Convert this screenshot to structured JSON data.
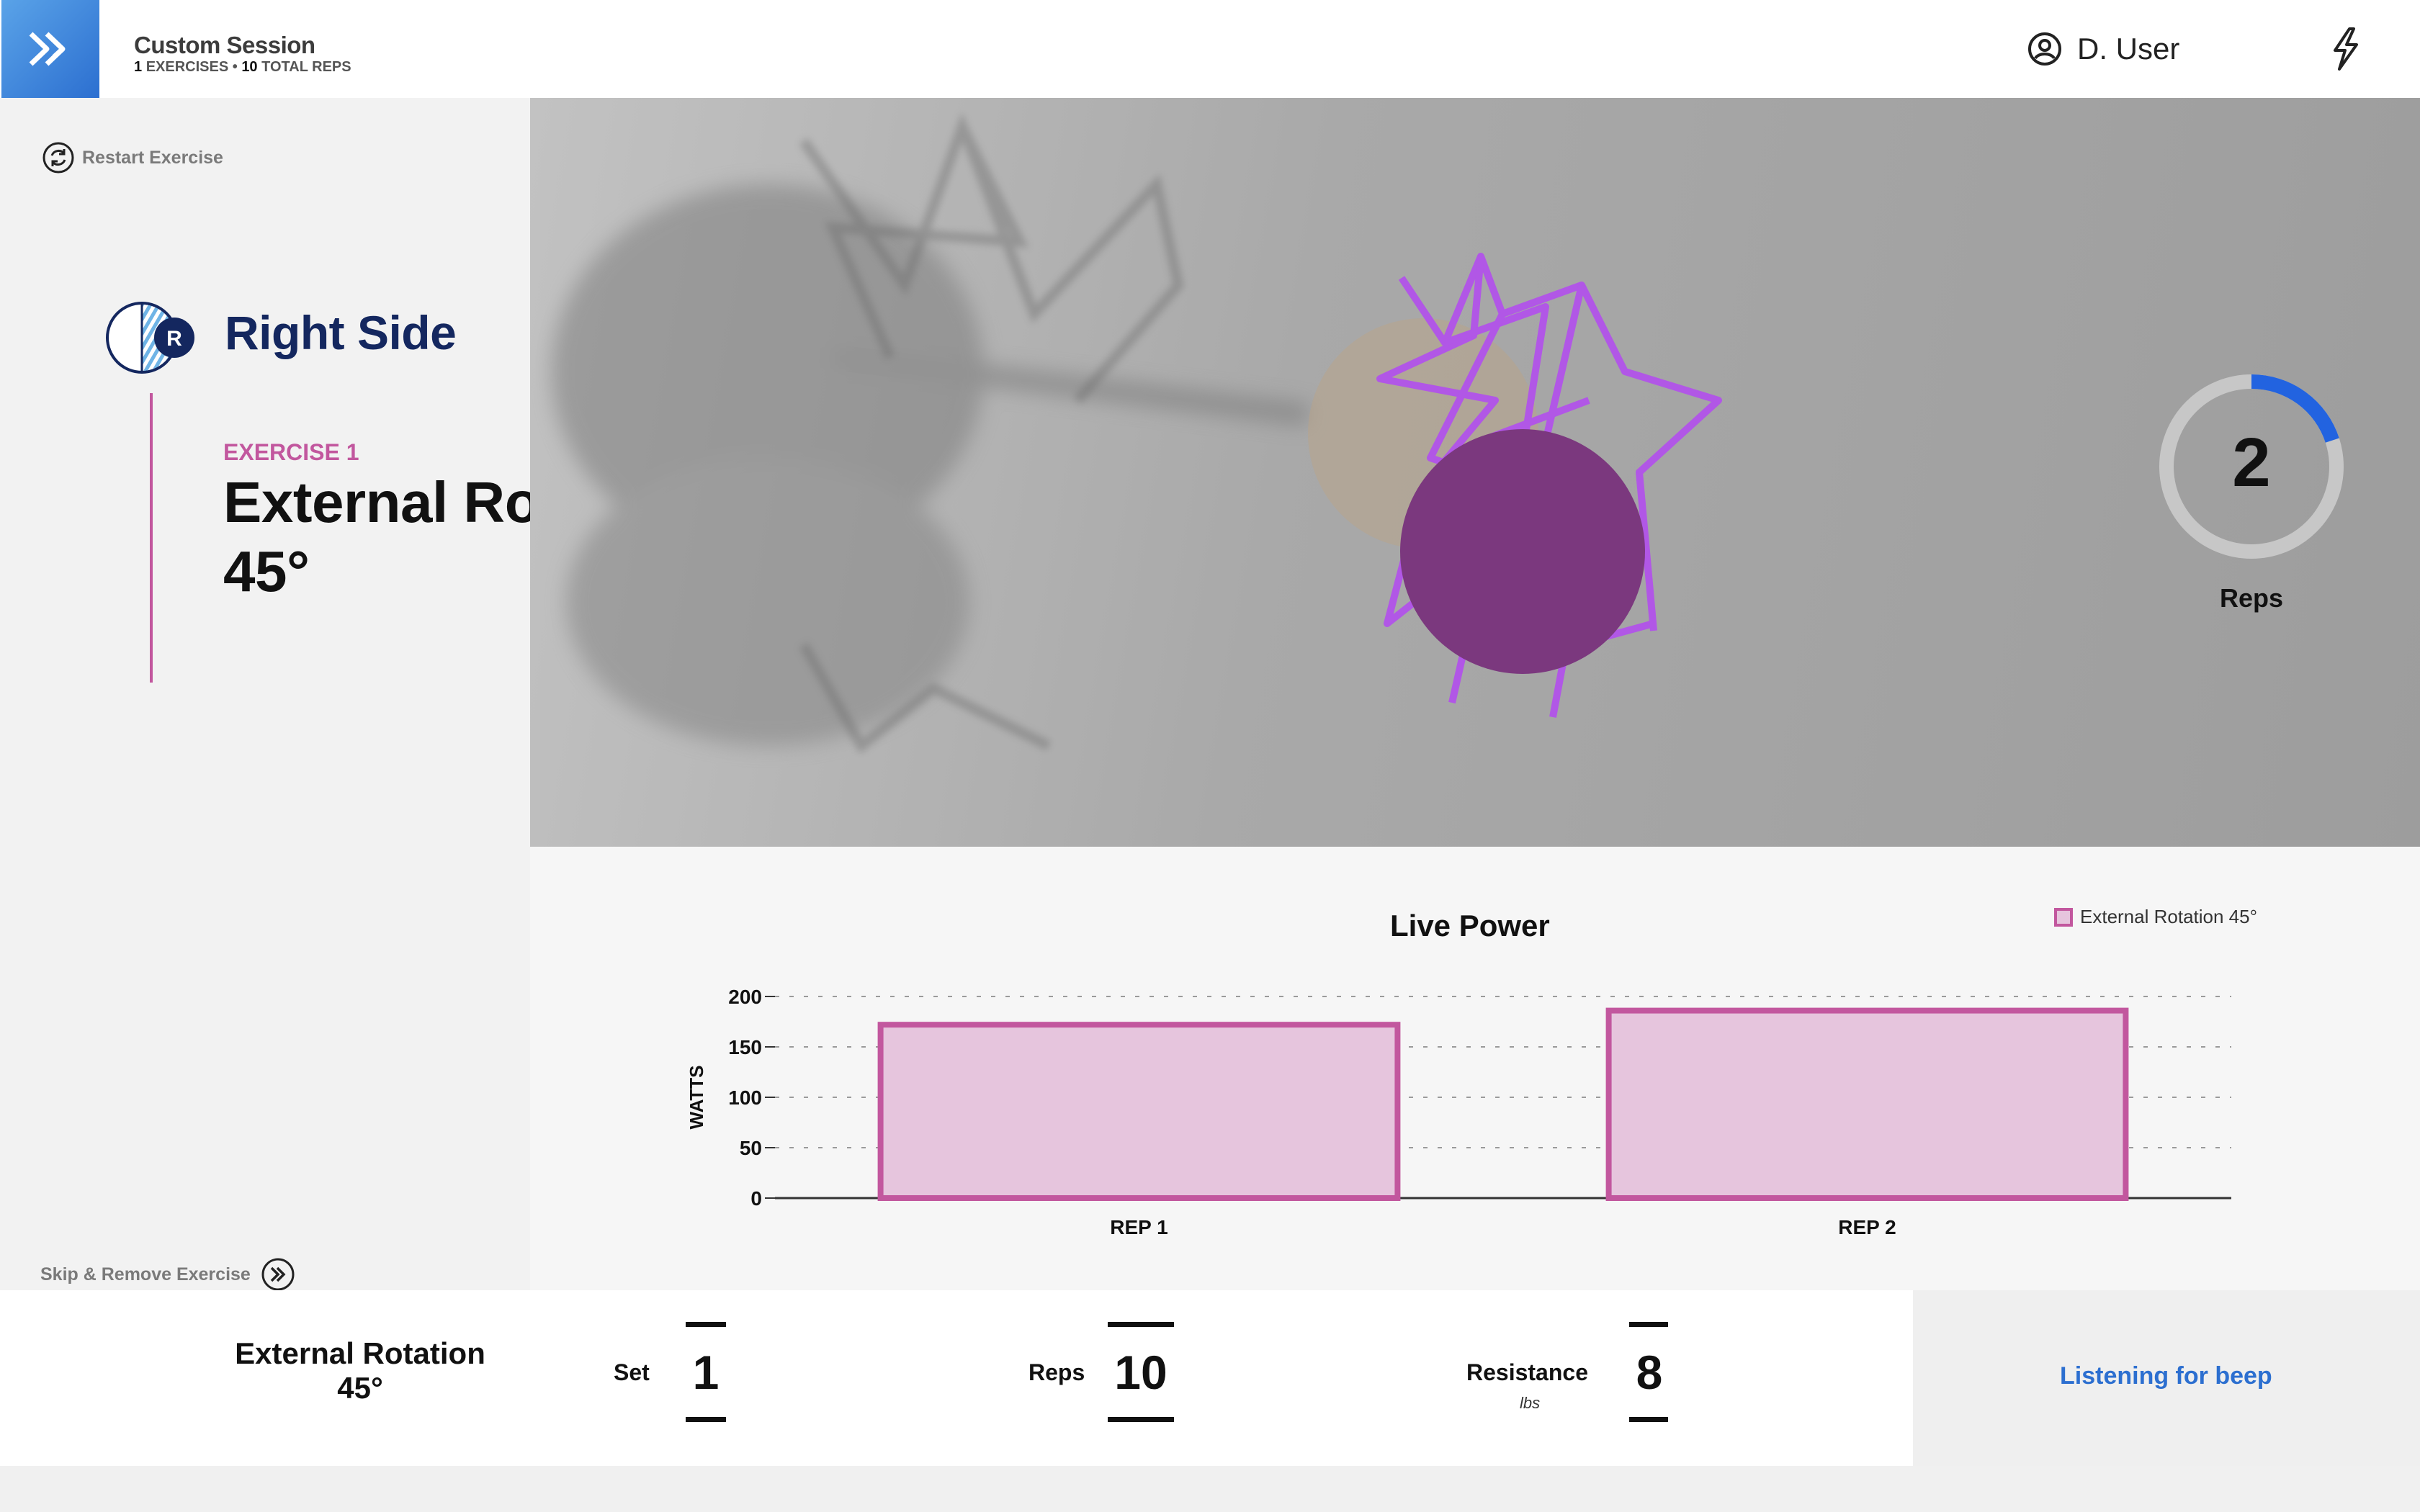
{
  "header": {
    "session_title": "Custom Session",
    "session_exercises_count": "1",
    "session_exercises_label": "EXERCISES",
    "session_separator": "•",
    "session_reps_count": "10",
    "session_reps_label": "TOTAL REPS",
    "user_name": "D. User",
    "icons": [
      "chevron-double-right-icon",
      "user-circle-icon",
      "lightning-bolt-icon"
    ]
  },
  "left_panel": {
    "restart_label": "Restart Exercise",
    "side_badge_letter": "R",
    "side_title": "Right Side",
    "exercise_label": "EXERCISE 1",
    "exercise_name_line1": "External Rotation",
    "exercise_name_line2": "45°",
    "skip_label": "Skip & Remove Exercise",
    "icons": [
      "restart-icon",
      "skip-icon"
    ]
  },
  "camera": {
    "reps_count": "2",
    "reps_label": "Reps",
    "reps_progress": 0.2
  },
  "chart_data": {
    "type": "bar",
    "title": "Live Power",
    "ylabel": "WATTS",
    "xlabel": "",
    "categories": [
      "REP 1",
      "REP 2"
    ],
    "series": [
      {
        "name": "External Rotation 45°",
        "values": [
          172,
          186
        ]
      }
    ],
    "ylim": [
      0,
      200
    ],
    "yticks": [
      0,
      50,
      100,
      150,
      200
    ],
    "grid": true,
    "legend_position": "top-right",
    "colors": {
      "bar_fill": "#e6c5dd",
      "bar_stroke": "#c2579e"
    }
  },
  "bottom_bar": {
    "exercise_line1": "External Rotation",
    "exercise_line2": "45°",
    "set_label": "Set",
    "set_value": "1",
    "reps_label": "Reps",
    "reps_value": "10",
    "resistance_label": "Resistance",
    "resistance_unit": "lbs",
    "resistance_value": "8",
    "status_text": "Listening for beep"
  },
  "colors": {
    "brand_blue": "#2c6fd0",
    "navy": "#14275f",
    "accent_pink": "#c2579e",
    "bar_fill": "#e6c5dd"
  }
}
